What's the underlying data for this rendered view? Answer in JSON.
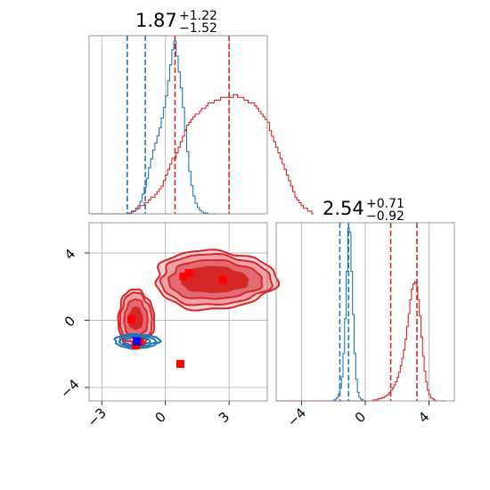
{
  "chart_data": {
    "type": "corner-plot",
    "colors": {
      "blue": "#1f77b4",
      "red": "#d62728",
      "marker_blue": "#0000ff",
      "marker_red": "#ff0000"
    },
    "param1": {
      "title": {
        "median": "1.87",
        "plus": "+1.22",
        "minus": "−1.52"
      },
      "xlim": [
        -3.6,
        4.8
      ],
      "ticks": [
        -3,
        0,
        3
      ],
      "tick_labels": [
        "−3",
        "0",
        "3"
      ],
      "quantiles_blue": [
        -1.8,
        -0.95
      ],
      "quantiles_red": [
        0.45,
        3.0
      ],
      "hist_blue": {
        "bin_start": -3.6,
        "bin_width": 0.1,
        "counts": [
          0,
          0,
          0,
          0,
          0,
          0,
          0,
          0,
          0,
          0,
          0,
          0,
          0,
          0,
          0,
          0,
          0,
          0,
          1,
          1,
          2,
          3,
          5,
          9,
          14,
          22,
          30,
          40,
          52,
          62,
          72,
          80,
          88,
          97,
          108,
          120,
          133,
          150,
          168,
          185,
          195,
          178,
          160,
          142,
          120,
          95,
          70,
          48,
          32,
          20,
          12,
          7,
          4,
          2,
          1,
          1,
          0,
          0,
          0,
          0
        ]
      },
      "hist_red": {
        "bin_start": -3.6,
        "bin_width": 0.1,
        "counts": [
          0,
          0,
          0,
          0,
          0,
          0,
          0,
          0,
          0,
          0,
          0,
          0,
          0,
          0,
          0,
          0,
          0,
          0,
          0,
          0,
          1,
          1,
          2,
          2,
          3,
          3,
          4,
          4,
          5,
          6,
          6,
          7,
          8,
          9,
          10,
          12,
          14,
          16,
          18,
          20,
          20,
          22,
          24,
          26,
          28,
          30,
          32,
          33,
          34,
          35,
          36,
          36,
          37,
          38,
          38,
          39,
          40,
          40,
          40,
          41,
          41,
          41,
          42,
          42,
          42,
          42,
          42,
          42,
          43,
          43,
          42,
          42,
          42,
          41,
          41,
          40,
          40,
          40,
          39,
          38,
          37,
          36,
          35,
          34,
          33,
          30,
          28,
          26,
          24,
          22,
          20,
          18,
          16,
          14,
          12,
          10,
          8,
          6,
          5,
          4,
          3,
          2,
          2,
          1,
          1,
          0
        ]
      }
    },
    "param2": {
      "title": {
        "median": "2.54",
        "plus": "+0.71",
        "minus": "−0.92"
      },
      "xlim": [
        -5.6,
        5.6
      ],
      "ticks": [
        -4,
        0,
        4
      ],
      "tick_labels": [
        "−4",
        "0",
        "4"
      ],
      "quantiles_blue": [
        -1.6,
        -1.05
      ],
      "quantiles_red": [
        1.6,
        3.25
      ],
      "hist_blue": {
        "bin_start": -5.6,
        "bin_width": 0.1,
        "counts": [
          0,
          0,
          0,
          0,
          0,
          0,
          0,
          0,
          0,
          0,
          0,
          0,
          0,
          0,
          0,
          0,
          0,
          0,
          0,
          0,
          0,
          0,
          0,
          0,
          0,
          0,
          0,
          0,
          0,
          0,
          0,
          0,
          0,
          0,
          0,
          0,
          1,
          2,
          4,
          8,
          15,
          28,
          55,
          95,
          150,
          200,
          195,
          150,
          100,
          55,
          25,
          10,
          4,
          2,
          1,
          0
        ]
      },
      "hist_red": {
        "bin_start": -5.6,
        "bin_width": 0.1,
        "counts": [
          0,
          0,
          0,
          0,
          0,
          0,
          0,
          0,
          0,
          0,
          0,
          0,
          0,
          0,
          0,
          0,
          0,
          0,
          0,
          0,
          0,
          0,
          0,
          0,
          0,
          0,
          0,
          0,
          0,
          0,
          0,
          0,
          0,
          0,
          0,
          0,
          0,
          0,
          0,
          0,
          0,
          0,
          0,
          0,
          0,
          0,
          0,
          0,
          0,
          0,
          0,
          0,
          0,
          0,
          0,
          0,
          0,
          0,
          0,
          0,
          0,
          1,
          1,
          1,
          2,
          2,
          3,
          3,
          4,
          5,
          6,
          8,
          10,
          12,
          15,
          18,
          22,
          27,
          33,
          40,
          48,
          58,
          70,
          82,
          95,
          105,
          110,
          112,
          108,
          95,
          80,
          60,
          42,
          28,
          18,
          10,
          6,
          3,
          2,
          1,
          0,
          0,
          0,
          0,
          0,
          0
        ]
      }
    },
    "joint": {
      "xlim": [
        -3.6,
        4.8
      ],
      "ylim": [
        -4.8,
        5.8
      ],
      "xticks": [
        -3,
        0,
        3
      ],
      "xtick_labels": [
        "−3",
        "0",
        "3"
      ],
      "yticks": [
        -4,
        0,
        4
      ],
      "ytick_labels": [
        "−4",
        "0",
        "4"
      ],
      "red_cluster_upper": {
        "cx": 2.3,
        "cy": 2.4,
        "levels": [
          [
            2.85,
            1.75
          ],
          [
            2.6,
            1.5
          ],
          [
            2.2,
            1.15
          ],
          [
            1.6,
            0.8
          ]
        ]
      },
      "red_cluster_lower": {
        "cx": -1.4,
        "cy": 0.1,
        "levels": [
          [
            0.85,
            1.7
          ],
          [
            0.75,
            1.5
          ],
          [
            0.55,
            1.1
          ],
          [
            0.35,
            0.7
          ]
        ]
      },
      "blue_cluster": {
        "cx": -1.35,
        "cy": -1.25,
        "levels": [
          [
            1.05,
            0.42
          ],
          [
            0.85,
            0.32
          ],
          [
            0.6,
            0.22
          ]
        ]
      },
      "red_markers": [
        [
          -1.6,
          0.05
        ],
        [
          1.1,
          2.8
        ],
        [
          0.85,
          2.6
        ],
        [
          2.7,
          2.4
        ],
        [
          0.7,
          -2.6
        ],
        [
          -1.4,
          -1.5
        ],
        [
          -1.2,
          -1.3
        ]
      ],
      "blue_markers": [
        [
          -1.35,
          -1.25
        ]
      ]
    }
  }
}
